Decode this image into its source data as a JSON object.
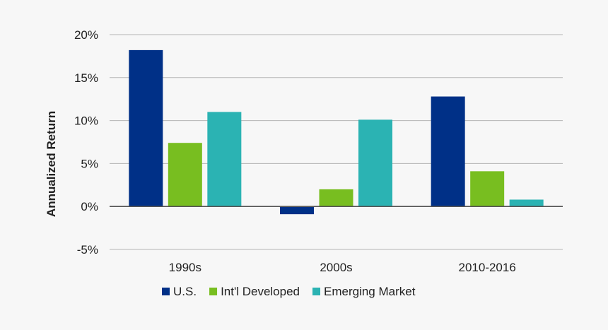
{
  "chart_data": {
    "type": "bar",
    "title": "",
    "xlabel": "",
    "ylabel": "Annualized Return",
    "categories": [
      "1990s",
      "2000s",
      "2010-2016"
    ],
    "series": [
      {
        "name": "U.S.",
        "color": "#003087",
        "values": [
          18.2,
          -0.9,
          12.8
        ]
      },
      {
        "name": "Int'l Developed",
        "color": "#78be20",
        "values": [
          7.4,
          2.0,
          4.1
        ]
      },
      {
        "name": "Emerging Market",
        "color": "#2bb3b3",
        "values": [
          11.0,
          10.1,
          0.8
        ]
      }
    ],
    "ylim": [
      -5,
      20
    ],
    "yticks": [
      20,
      15,
      10,
      5,
      0,
      -5
    ],
    "ytick_labels": [
      "20%",
      "15%",
      "10%",
      "5%",
      "0%",
      "-5%"
    ],
    "grid": true,
    "legend_position": "bottom"
  }
}
